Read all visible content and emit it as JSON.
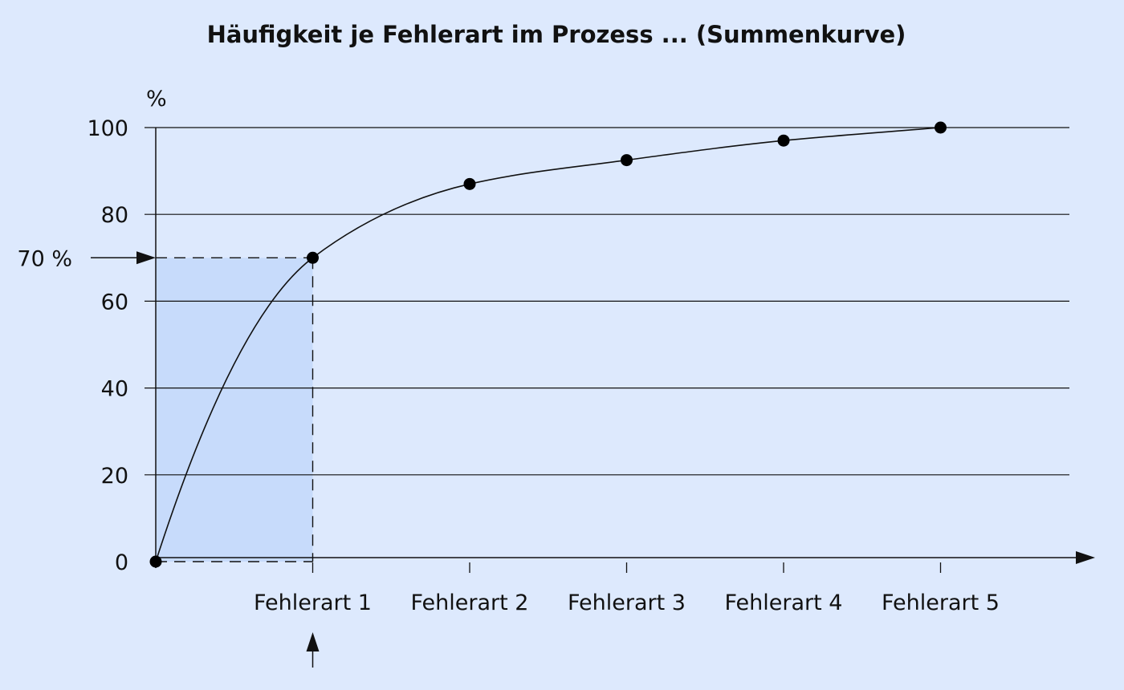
{
  "chart_data": {
    "type": "line",
    "title": "Häufigkeit je Fehlerart im Prozess ... (Summenkurve)",
    "ylabel": "%",
    "xlabel": "",
    "ylim": [
      0,
      100
    ],
    "yticks": [
      0,
      20,
      40,
      60,
      80,
      100
    ],
    "grid": true,
    "categories": [
      "Fehlerart 1",
      "Fehlerart 2",
      "Fehlerart 3",
      "Fehlerart 4",
      "Fehlerart 5"
    ],
    "series": [
      {
        "x": [
          0,
          1,
          2,
          3,
          4,
          5
        ],
        "values": [
          0,
          70,
          87,
          92.5,
          97,
          100
        ]
      }
    ],
    "annotations": {
      "threshold_label": "70 %",
      "threshold_value": 70,
      "highlighted_category": "Fehlerart 1",
      "highlight_color": "#c7dbfb"
    },
    "colors": {
      "background": "#dde9fd",
      "line": "#111111",
      "highlight": "#c7dbfb"
    }
  }
}
